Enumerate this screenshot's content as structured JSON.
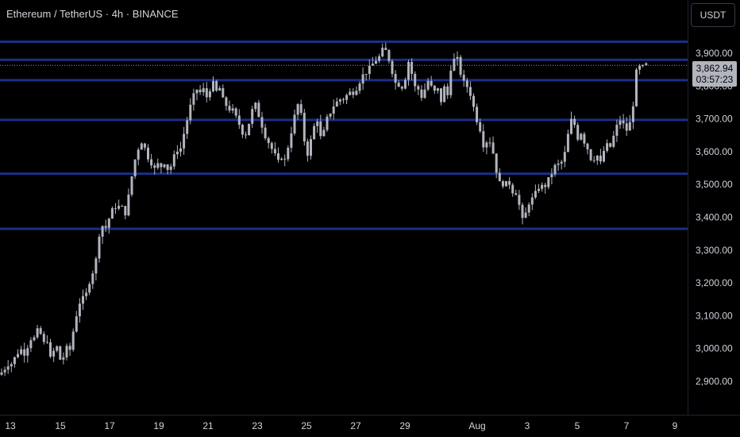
{
  "symbol_title": "Ethereum / TetherUS · 4h · BINANCE",
  "currency": "USDT",
  "last_price": "3,862.94",
  "countdown": "03:57:23",
  "chart_data": {
    "type": "candlestick",
    "title": "Ethereum / TetherUS · 4h · BINANCE",
    "ylim": [
      2800,
      3960
    ],
    "y_ticks": [
      2900,
      3000,
      3100,
      3200,
      3300,
      3400,
      3500,
      3600,
      3700,
      3800,
      3900
    ],
    "y_tick_labels": [
      "2,900.00",
      "3,000.00",
      "3,100.00",
      "3,200.00",
      "3,300.00",
      "3,400.00",
      "3,500.00",
      "3,600.00",
      "3,700.00",
      "3,800.00",
      "3,900.00"
    ],
    "x_ticks": [
      "13",
      "15",
      "17",
      "19",
      "21",
      "23",
      "25",
      "27",
      "29",
      "Aug",
      "3",
      "5",
      "7",
      "9"
    ],
    "horizontal_levels": [
      3935,
      3880,
      3818,
      3697,
      3533,
      3365
    ],
    "colors": {
      "candles": "#b2b5be",
      "levels": "#1a2f8a",
      "grid": "#1e222d"
    },
    "close_path": [
      [
        0,
        2920
      ],
      [
        4,
        2935
      ],
      [
        8,
        2945
      ],
      [
        12,
        2960
      ],
      [
        16,
        2950
      ],
      [
        20,
        2985
      ],
      [
        24,
        2990
      ],
      [
        28,
        3000
      ],
      [
        32,
        2980
      ],
      [
        36,
        3020
      ],
      [
        40,
        3035
      ],
      [
        44,
        3030
      ],
      [
        48,
        3060
      ],
      [
        52,
        3040
      ],
      [
        56,
        3010
      ],
      [
        60,
        3030
      ],
      [
        64,
        2960
      ],
      [
        68,
        2995
      ],
      [
        72,
        3005
      ],
      [
        76,
        2965
      ],
      [
        80,
        2975
      ],
      [
        84,
        3000
      ],
      [
        88,
        2995
      ],
      [
        92,
        3050
      ],
      [
        96,
        3100
      ],
      [
        100,
        3140
      ],
      [
        104,
        3150
      ],
      [
        108,
        3160
      ],
      [
        112,
        3200
      ],
      [
        116,
        3230
      ],
      [
        120,
        3250
      ],
      [
        124,
        3340
      ],
      [
        128,
        3380
      ],
      [
        132,
        3360
      ],
      [
        136,
        3390
      ],
      [
        140,
        3410
      ],
      [
        144,
        3440
      ],
      [
        148,
        3420
      ],
      [
        152,
        3450
      ],
      [
        156,
        3400
      ],
      [
        160,
        3430
      ],
      [
        164,
        3500
      ],
      [
        168,
        3550
      ],
      [
        172,
        3600
      ],
      [
        176,
        3620
      ],
      [
        180,
        3640
      ],
      [
        184,
        3590
      ],
      [
        188,
        3580
      ],
      [
        192,
        3560
      ],
      [
        196,
        3540
      ],
      [
        200,
        3570
      ],
      [
        204,
        3550
      ],
      [
        208,
        3575
      ],
      [
        212,
        3540
      ],
      [
        216,
        3560
      ],
      [
        220,
        3590
      ],
      [
        224,
        3610
      ],
      [
        228,
        3610
      ],
      [
        232,
        3660
      ],
      [
        236,
        3700
      ],
      [
        240,
        3740
      ],
      [
        244,
        3770
      ],
      [
        248,
        3790
      ],
      [
        252,
        3780
      ],
      [
        256,
        3790
      ],
      [
        260,
        3765
      ],
      [
        264,
        3790
      ],
      [
        268,
        3810
      ],
      [
        272,
        3780
      ],
      [
        276,
        3800
      ],
      [
        280,
        3760
      ],
      [
        284,
        3745
      ],
      [
        288,
        3730
      ],
      [
        292,
        3730
      ],
      [
        296,
        3710
      ],
      [
        300,
        3690
      ],
      [
        304,
        3670
      ],
      [
        308,
        3640
      ],
      [
        312,
        3680
      ],
      [
        316,
        3700
      ],
      [
        320,
        3760
      ],
      [
        324,
        3720
      ],
      [
        328,
        3700
      ],
      [
        332,
        3660
      ],
      [
        336,
        3640
      ],
      [
        340,
        3620
      ],
      [
        344,
        3600
      ],
      [
        348,
        3580
      ],
      [
        352,
        3560
      ],
      [
        356,
        3600
      ],
      [
        360,
        3560
      ],
      [
        364,
        3640
      ],
      [
        368,
        3670
      ],
      [
        372,
        3720
      ],
      [
        376,
        3750
      ],
      [
        380,
        3700
      ],
      [
        384,
        3620
      ],
      [
        388,
        3590
      ],
      [
        392,
        3640
      ],
      [
        396,
        3680
      ],
      [
        400,
        3700
      ],
      [
        404,
        3640
      ],
      [
        408,
        3660
      ],
      [
        412,
        3700
      ],
      [
        416,
        3720
      ],
      [
        420,
        3740
      ],
      [
        424,
        3750
      ],
      [
        428,
        3760
      ],
      [
        432,
        3760
      ],
      [
        436,
        3770
      ],
      [
        440,
        3780
      ],
      [
        444,
        3780
      ],
      [
        448,
        3790
      ],
      [
        452,
        3810
      ],
      [
        456,
        3830
      ],
      [
        460,
        3840
      ],
      [
        464,
        3850
      ],
      [
        468,
        3860
      ],
      [
        472,
        3880
      ],
      [
        476,
        3880
      ],
      [
        480,
        3900
      ],
      [
        484,
        3920
      ],
      [
        488,
        3890
      ],
      [
        492,
        3870
      ],
      [
        496,
        3820
      ],
      [
        500,
        3800
      ],
      [
        504,
        3810
      ],
      [
        508,
        3790
      ],
      [
        512,
        3850
      ],
      [
        516,
        3890
      ],
      [
        520,
        3810
      ],
      [
        524,
        3790
      ],
      [
        528,
        3790
      ],
      [
        532,
        3760
      ],
      [
        536,
        3800
      ],
      [
        540,
        3820
      ],
      [
        544,
        3790
      ],
      [
        548,
        3780
      ],
      [
        552,
        3790
      ],
      [
        556,
        3750
      ],
      [
        560,
        3800
      ],
      [
        564,
        3770
      ],
      [
        568,
        3860
      ],
      [
        572,
        3880
      ],
      [
        576,
        3880
      ],
      [
        580,
        3840
      ],
      [
        584,
        3810
      ],
      [
        588,
        3800
      ],
      [
        592,
        3780
      ],
      [
        596,
        3740
      ],
      [
        600,
        3700
      ],
      [
        604,
        3680
      ],
      [
        608,
        3620
      ],
      [
        612,
        3630
      ],
      [
        616,
        3640
      ],
      [
        620,
        3610
      ],
      [
        624,
        3560
      ],
      [
        628,
        3500
      ],
      [
        632,
        3510
      ],
      [
        636,
        3490
      ],
      [
        640,
        3520
      ],
      [
        644,
        3480
      ],
      [
        648,
        3480
      ],
      [
        652,
        3470
      ],
      [
        656,
        3400
      ],
      [
        660,
        3380
      ],
      [
        664,
        3440
      ],
      [
        668,
        3450
      ],
      [
        672,
        3460
      ],
      [
        676,
        3480
      ],
      [
        680,
        3500
      ],
      [
        684,
        3490
      ],
      [
        688,
        3500
      ],
      [
        692,
        3520
      ],
      [
        696,
        3540
      ],
      [
        700,
        3560
      ],
      [
        704,
        3560
      ],
      [
        708,
        3570
      ],
      [
        712,
        3600
      ],
      [
        716,
        3660
      ],
      [
        720,
        3700
      ],
      [
        724,
        3680
      ],
      [
        728,
        3640
      ],
      [
        732,
        3660
      ],
      [
        736,
        3630
      ],
      [
        740,
        3610
      ],
      [
        744,
        3580
      ],
      [
        748,
        3580
      ],
      [
        752,
        3590
      ],
      [
        756,
        3560
      ],
      [
        760,
        3600
      ],
      [
        764,
        3620
      ],
      [
        768,
        3610
      ],
      [
        772,
        3640
      ],
      [
        776,
        3670
      ],
      [
        780,
        3700
      ],
      [
        784,
        3690
      ],
      [
        788,
        3660
      ],
      [
        792,
        3680
      ],
      [
        796,
        3700
      ],
      [
        800,
        3830
      ],
      [
        804,
        3860
      ],
      [
        808,
        3850
      ],
      [
        812,
        3865
      ],
      [
        816,
        3862.94
      ]
    ]
  }
}
